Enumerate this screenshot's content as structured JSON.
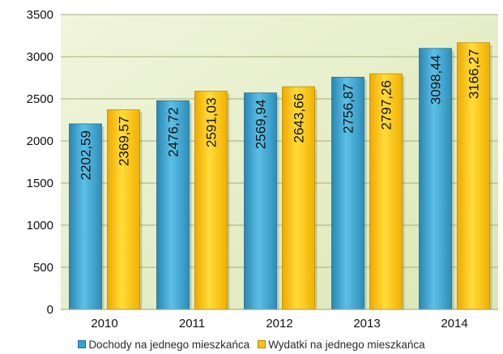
{
  "chart_data": {
    "type": "bar",
    "title": "",
    "xlabel": "",
    "ylabel": "",
    "categories": [
      "2010",
      "2011",
      "2012",
      "2013",
      "2014"
    ],
    "ylim": [
      0,
      3500
    ],
    "yticks": [
      "0",
      "500",
      "1000",
      "1500",
      "2000",
      "2500",
      "3000",
      "3500"
    ],
    "grid": true,
    "legend_position": "bottom",
    "series": [
      {
        "name": "Dochody na jednego mieszkańca",
        "values": [
          2202.59,
          2476.72,
          2569.94,
          2756.87,
          3098.44
        ],
        "labels": [
          "2202,59",
          "2476,72",
          "2569,94",
          "2756,87",
          "3098,44"
        ],
        "color": "#3a9fcb"
      },
      {
        "name": "Wydatki na jednego mieszkańca",
        "values": [
          2369.57,
          2591.03,
          2643.66,
          2797.26,
          3166.27
        ],
        "labels": [
          "2369,57",
          "2591,03",
          "2643,66",
          "2797,26",
          "3166,27"
        ],
        "color": "#f5c21a"
      }
    ],
    "plot_background": "#e8f0c8"
  }
}
